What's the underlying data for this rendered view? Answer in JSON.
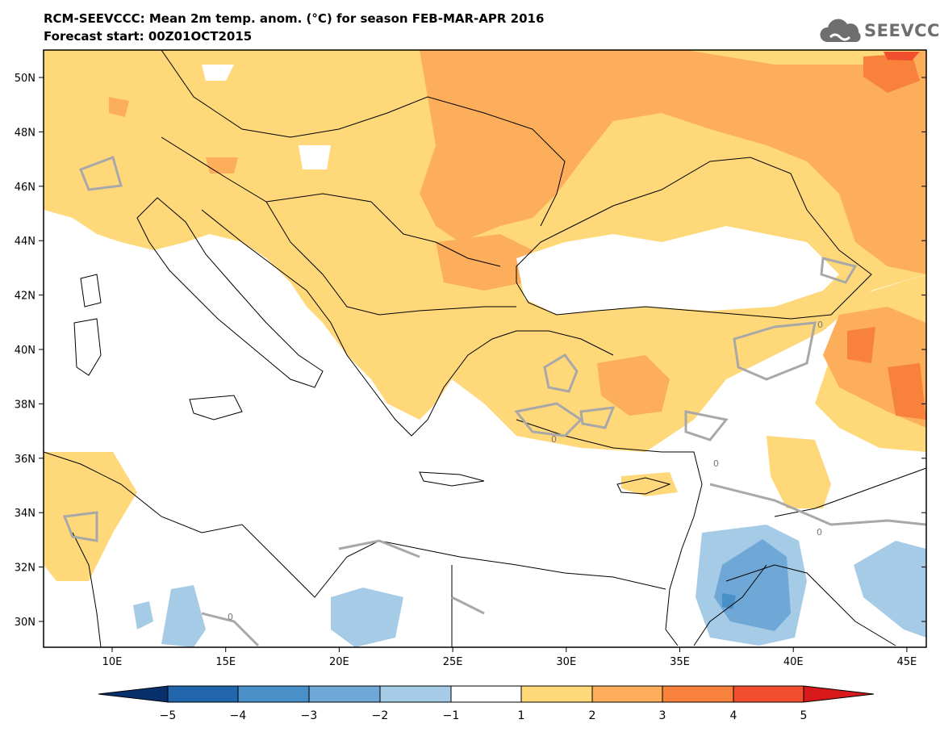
{
  "header": {
    "title_line1": "RCM-SEEVCCC: Mean 2m temp. anom. (°C) for season FEB-MAR-APR 2016",
    "title_line2": "Forecast start: 00Z01OCT2015"
  },
  "logo": {
    "text": "SEEVCCC",
    "icon": "cloud-icon"
  },
  "map": {
    "lat_labels": [
      "50N",
      "48N",
      "46N",
      "44N",
      "42N",
      "40N",
      "38N",
      "36N",
      "34N",
      "32N",
      "30N"
    ],
    "lon_labels": [
      "10E",
      "15E",
      "20E",
      "25E",
      "30E",
      "35E",
      "40E",
      "45E"
    ],
    "contour_zero_label": "0"
  },
  "legend": {
    "ticks": [
      "−5",
      "−4",
      "−3",
      "−2",
      "−1",
      "1",
      "2",
      "3",
      "4",
      "5"
    ],
    "colors": [
      "#08306b",
      "#2166ac",
      "#4a90c8",
      "#6fa8d6",
      "#a6cbe6",
      "#ffffff",
      "#ffd87a",
      "#fdae5a",
      "#f8823b",
      "#f04e2c",
      "#d7191c"
    ]
  }
}
